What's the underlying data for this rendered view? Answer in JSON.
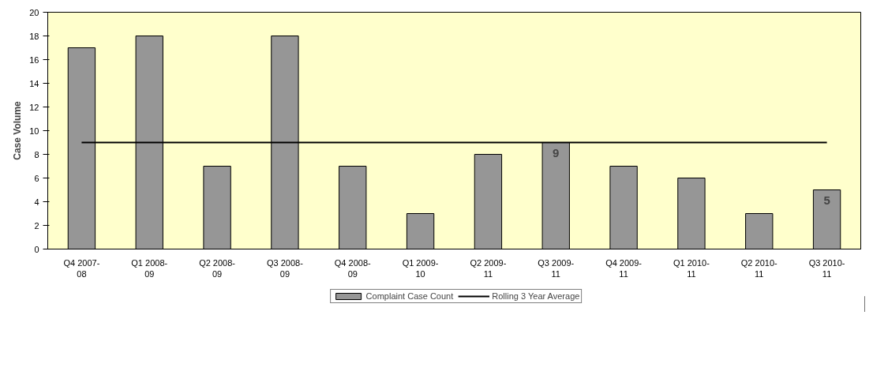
{
  "chart_data": {
    "type": "bar",
    "ylabel": "Case Volume",
    "categories": [
      "Q4 2007-08",
      "Q1 2008-09",
      "Q2 2008-09",
      "Q3 2008-09",
      "Q4 2008-09",
      "Q1 2009-10",
      "Q2 2009-11",
      "Q3 2009-11",
      "Q4 2009-11",
      "Q1 2010-11",
      "Q2 2010-11",
      "Q3 2010-11"
    ],
    "series": [
      {
        "name": "Complaint Case Count",
        "color": "#969696",
        "values": [
          17,
          18,
          7,
          18,
          7,
          3,
          8,
          9,
          7,
          6,
          3,
          5
        ],
        "value_labels": [
          null,
          null,
          null,
          null,
          null,
          null,
          null,
          "9",
          null,
          null,
          null,
          "5"
        ]
      },
      {
        "name": "Rolling 3 Year Average",
        "type": "line",
        "color": "#000000",
        "values": [
          9,
          9,
          9,
          9,
          9,
          9,
          9,
          9,
          9,
          9,
          9,
          9
        ]
      }
    ],
    "ylim": [
      0,
      20
    ],
    "yticks": [
      0,
      2,
      4,
      6,
      8,
      10,
      12,
      14,
      16,
      18,
      20
    ],
    "grid": false,
    "legend": "bottom"
  }
}
